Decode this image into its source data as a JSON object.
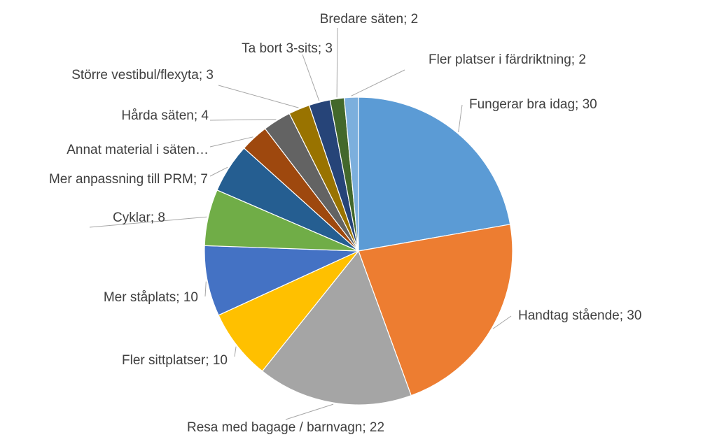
{
  "chart_data": {
    "type": "pie",
    "categories": [
      "Fungerar bra idag",
      "Handtag stående",
      "Resa med bagage / barnvagn",
      "Fler sittplatser",
      "Mer ståplats",
      "Cyklar",
      "Mer anpassning till PRM",
      "Annat material i säten",
      "Hårda säten",
      "Större vestibul/flexyta",
      "Ta bort 3-sits",
      "Bredare säten",
      "Fler platser i färdriktning"
    ],
    "values": [
      30,
      30,
      22,
      10,
      10,
      8,
      7,
      4,
      4,
      3,
      3,
      2,
      2
    ],
    "labels": [
      "Fungerar bra idag; 30",
      "Handtag stående; 30",
      "Resa med bagage / barnvagn; 22",
      "Fler sittplatser; 10",
      "Mer ståplats; 10",
      "Cyklar; 8",
      "Mer anpassning till PRM; 7",
      "Annat material i säten…",
      "Hårda säten; 4",
      "Större vestibul/flexyta; 3",
      "Ta bort 3-sits; 3",
      "Bredare säten; 2",
      "Fler platser i färdriktning; 2"
    ],
    "colors": [
      "#5b9bd5",
      "#ed7d31",
      "#a5a5a5",
      "#ffc000",
      "#4472c4",
      "#70ad47",
      "#255e91",
      "#9e480e",
      "#636363",
      "#997300",
      "#264478",
      "#43682b",
      "#7cafdd"
    ],
    "start_angle": "12 o'clock",
    "direction": "clockwise",
    "title": "",
    "legend": "none"
  }
}
